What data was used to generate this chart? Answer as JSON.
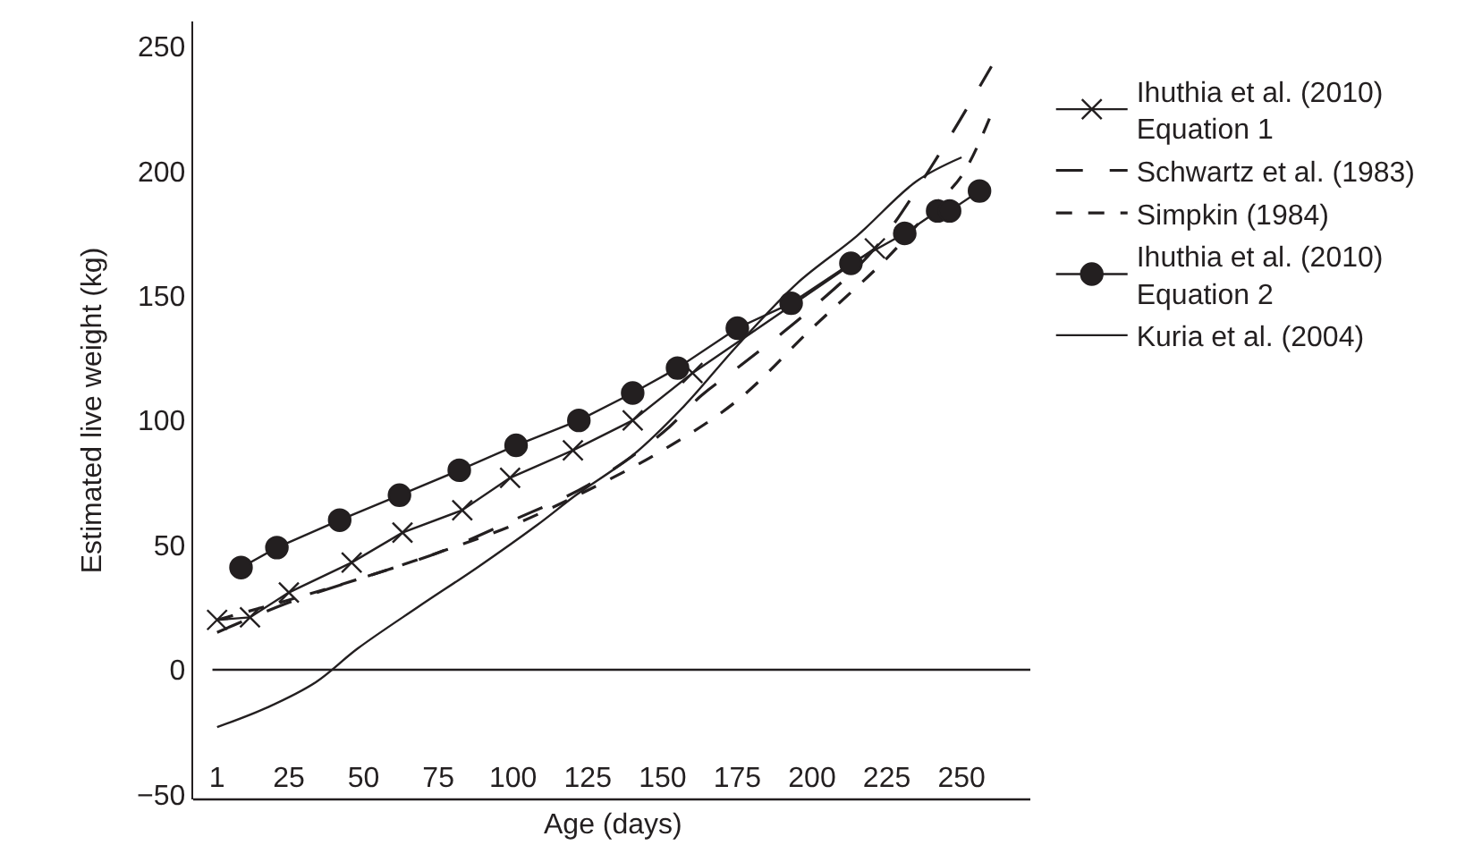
{
  "chart_data": {
    "type": "line",
    "xlabel": "Age (days)",
    "ylabel": "Estimated live weight (kg)",
    "xlim": [
      -7,
      273
    ],
    "ylim": [
      -52,
      260
    ],
    "xticks": [
      1,
      25,
      50,
      75,
      100,
      125,
      150,
      175,
      200,
      225,
      250
    ],
    "yticks": [
      {
        "value": -50,
        "label": "−50"
      },
      0,
      50,
      100,
      150,
      200,
      250
    ],
    "legend": "right",
    "ref_lines": [
      {
        "axis": "y",
        "value": 0,
        "color": "#231f20"
      }
    ],
    "series": [
      {
        "name": "Ihuthia et al. (2010)\nEquation 1",
        "color": "#231f20",
        "marker": "cross",
        "line_style": "solid",
        "x": [
          1,
          12,
          25,
          46,
          63,
          83,
          99,
          120,
          140,
          160,
          221
        ],
        "values": [
          20,
          21,
          31,
          43,
          55,
          64,
          77,
          88,
          100,
          119,
          169
        ]
      },
      {
        "name": "Schwartz et al. (1983)",
        "color": "#231f20",
        "marker": "none",
        "line_style": "dashed",
        "x": [
          1,
          25,
          50,
          75,
          100,
          125,
          150,
          163,
          175,
          200,
          221,
          240,
          260
        ],
        "values": [
          15,
          27,
          37,
          47,
          60,
          74,
          95,
          110,
          121,
          145,
          169,
          202,
          242
        ]
      },
      {
        "name": "Simpkin (1984)",
        "color": "#231f20",
        "marker": "none",
        "line_style": "dashed",
        "x": [
          1,
          25,
          50,
          75,
          100,
          125,
          150,
          175,
          200,
          225,
          240,
          250,
          260
        ],
        "values": [
          20,
          28,
          37,
          47,
          58,
          72,
          88,
          108,
          137,
          165,
          185,
          198,
          223
        ]
      },
      {
        "name": "Ihuthia et al. (2010)\nEquation 2",
        "color": "#231f20",
        "marker": "circle",
        "line_style": "solid",
        "x": [
          9,
          21,
          42,
          62,
          82,
          101,
          122,
          140,
          155,
          175,
          193,
          213,
          231,
          242,
          246,
          256
        ],
        "values": [
          41,
          49,
          60,
          70,
          80,
          90,
          100,
          111,
          121,
          137,
          147,
          163,
          175,
          184,
          184,
          192
        ]
      },
      {
        "name": "Kuria et al. (2004)",
        "color": "#231f20",
        "marker": "none",
        "line_style": "solid",
        "x": [
          1,
          18,
          34,
          48,
          68,
          88,
          108,
          121,
          140,
          157,
          175,
          195,
          215,
          235,
          250
        ],
        "values": [
          -23,
          -15,
          -5,
          8.5,
          25,
          41,
          58,
          70,
          86,
          105.5,
          130,
          155,
          174,
          196,
          205.5
        ]
      }
    ]
  }
}
